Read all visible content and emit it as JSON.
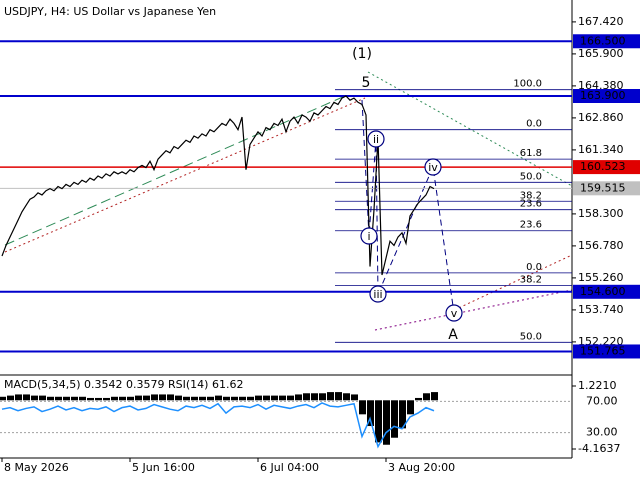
{
  "chart_data": [
    {
      "type": "line",
      "title": "USDJPY, H4:  US Dollar vs Japanese Yen",
      "color": "#000000",
      "values": [
        156.3,
        156.8,
        157.2,
        157.6,
        158.0,
        158.4,
        158.7,
        159.0,
        159.1,
        159.3,
        159.2,
        159.4,
        159.5,
        159.4,
        159.6,
        159.5,
        159.7,
        159.6,
        159.8,
        159.7,
        159.9,
        159.8,
        160.0,
        159.9,
        160.1,
        160.0,
        160.2,
        160.1,
        160.3,
        160.2,
        160.3,
        160.2,
        160.4,
        160.3,
        160.5,
        160.6,
        160.5,
        160.8,
        160.4,
        160.9,
        161.1,
        161.3,
        161.2,
        161.5,
        161.4,
        161.6,
        161.8,
        161.7,
        162.0,
        161.9,
        162.1,
        162.0,
        162.3,
        162.2,
        162.4,
        162.6,
        162.5,
        162.8,
        162.6,
        162.3,
        162.9,
        160.4,
        161.6,
        161.9,
        162.2,
        162.0,
        162.4,
        162.3,
        162.6,
        162.5,
        162.8,
        162.2,
        162.7,
        162.9,
        162.6,
        163.0,
        162.9,
        162.7,
        163.1,
        163.0,
        163.2,
        163.4,
        163.3,
        163.6,
        163.5,
        163.8,
        163.9,
        163.7,
        163.8,
        163.6,
        163.5,
        163.0,
        155.8,
        158.5,
        161.9,
        155.4,
        156.2,
        157.0,
        156.8,
        157.2,
        157.4,
        156.9,
        158.2,
        158.5,
        158.8,
        159.0,
        159.2,
        159.6,
        159.5
      ],
      "categories": [
        "8 May 2026",
        null,
        null,
        null,
        null,
        null,
        null,
        null,
        null,
        null,
        null,
        null,
        null,
        null,
        null,
        null,
        null,
        null,
        null,
        null,
        null,
        null,
        null,
        null,
        null,
        null,
        null,
        null,
        null,
        null,
        null,
        null,
        "5 Jun 16:00",
        null,
        null,
        null,
        null,
        null,
        null,
        null,
        null,
        null,
        null,
        null,
        null,
        null,
        null,
        null,
        null,
        null,
        null,
        null,
        null,
        null,
        null,
        null,
        null,
        null,
        null,
        null,
        null,
        null,
        null,
        null,
        "6 Jul 04:00",
        null,
        null,
        null,
        null,
        null,
        null,
        null,
        null,
        null,
        null,
        null,
        null,
        null,
        null,
        null,
        null,
        null,
        null,
        null,
        null,
        null,
        null,
        null,
        null,
        null,
        null,
        null,
        null,
        null,
        null,
        null,
        "3 Aug 20:00",
        null,
        null,
        null,
        null,
        null,
        null,
        null,
        null,
        null,
        null,
        null,
        null
      ],
      "ylim": [
        150.79,
        168.46
      ],
      "yticks": [
        {
          "value": 167.42,
          "label": "167.420"
        },
        {
          "value": 165.9,
          "label": "165.900"
        },
        {
          "value": 164.38,
          "label": "164.380"
        },
        {
          "value": 162.86,
          "label": "162.860"
        },
        {
          "value": 161.34,
          "label": "161.340"
        },
        {
          "value": 158.3,
          "label": "158.300"
        },
        {
          "value": 156.78,
          "label": "156.780"
        },
        {
          "value": 155.26,
          "label": "155.260"
        },
        {
          "value": 153.74,
          "label": "153.740"
        },
        {
          "value": 152.22,
          "label": "152.220"
        }
      ],
      "levels": [
        {
          "value": 166.5,
          "label": "166.500",
          "color": "#0000cc"
        },
        {
          "value": 163.9,
          "label": "163.900",
          "color": "#0000cc"
        },
        {
          "value": 160.523,
          "label": "160.523",
          "color": "#e00000"
        },
        {
          "value": 159.515,
          "label": "159.515",
          "color": "#c0c0c0"
        },
        {
          "value": 154.6,
          "label": "154.600",
          "color": "#0000cc"
        },
        {
          "value": 151.765,
          "label": "151.765",
          "color": "#0000cc"
        }
      ],
      "fib_levels": [
        {
          "value": 164.2,
          "label": "100.0"
        },
        {
          "value": 162.3,
          "label": "0.0"
        },
        {
          "value": 160.9,
          "label": "61.8"
        },
        {
          "value": 159.8,
          "label": "50.0"
        },
        {
          "value": 158.9,
          "label": "38.2"
        },
        {
          "value": 158.5,
          "label": "23.6"
        },
        {
          "value": 157.5,
          "label": "23.6"
        },
        {
          "value": 155.5,
          "label": "0.0"
        },
        {
          "value": 154.9,
          "label": "38.2"
        },
        {
          "value": 152.2,
          "label": "50.0"
        }
      ],
      "wave_labels": [
        {
          "text": "(1)",
          "color": "#2e8b57"
        },
        {
          "text": "5",
          "color": "#b22222"
        },
        {
          "text": "A",
          "color": "#b22222"
        },
        {
          "text": "i",
          "color": "#000080"
        },
        {
          "text": "ii",
          "color": "#000080"
        },
        {
          "text": "iii",
          "color": "#000080"
        },
        {
          "text": "iv",
          "color": "#000080"
        },
        {
          "text": "v",
          "color": "#000080"
        }
      ]
    },
    {
      "type": "indicator",
      "title": "MACD(5,34,5) 0.3542 0.3579 RSI(14) 61.62",
      "series": [
        {
          "color": "#000000",
          "axis": "y2",
          "values": [
            0.3,
            0.4,
            0.5,
            0.5,
            0.4,
            0.4,
            0.3,
            0.3,
            0.3,
            0.3,
            0.3,
            0.2,
            0.2,
            0.2,
            0.3,
            0.3,
            0.3,
            0.4,
            0.4,
            0.5,
            0.5,
            0.5,
            0.4,
            0.3,
            0.3,
            0.3,
            0.3,
            0.4,
            0.3,
            0.3,
            0.3,
            0.3,
            0.4,
            0.4,
            0.4,
            0.4,
            0.4,
            0.5,
            0.6,
            0.6,
            0.6,
            0.7,
            0.7,
            0.6,
            0.5,
            -1.2,
            -2.2,
            -3.6,
            -3.8,
            -3.2,
            -2.4,
            -1.2,
            0.2,
            0.6,
            0.7
          ]
        },
        {
          "color": "#1e90ff",
          "values": [
            60,
            62,
            58,
            61,
            63,
            57,
            60,
            64,
            59,
            62,
            58,
            61,
            60,
            63,
            57,
            62,
            64,
            59,
            61,
            66,
            63,
            60,
            58,
            64,
            62,
            65,
            61,
            67,
            55,
            63,
            64,
            62,
            66,
            60,
            65,
            63,
            61,
            64,
            66,
            62,
            68,
            64,
            63,
            65,
            67,
            25,
            48,
            12,
            30,
            38,
            35,
            50,
            55,
            62,
            58
          ]
        }
      ],
      "ylim": [
        0,
        100
      ],
      "yticks": [
        {
          "value": 70,
          "label": "70.00"
        },
        {
          "value": 30,
          "label": "30.00"
        }
      ],
      "y2lim": [
        -4.762,
        1.905
      ],
      "y2ticks": [
        {
          "value": 1.221,
          "label": "1.2210"
        },
        {
          "value": -4.1637,
          "label": "-4.1637"
        }
      ]
    }
  ]
}
